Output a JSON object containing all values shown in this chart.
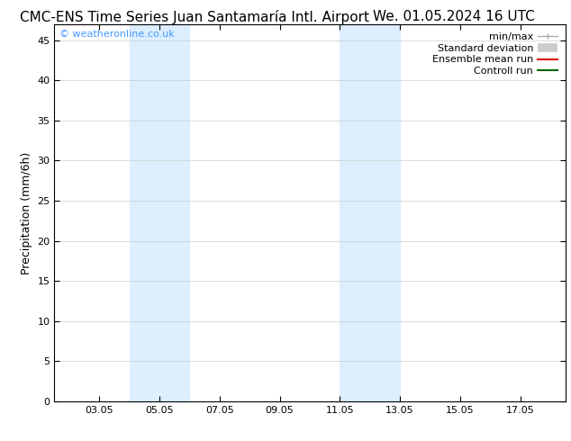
{
  "title_left": "CMC-ENS Time Series Juan Santamaría Intl. Airport",
  "title_right": "We. 01.05.2024 16 UTC",
  "ylabel": "Precipitation (mm/6h)",
  "copyright": "© weatheronline.co.uk",
  "copyright_color": "#4499ff",
  "background_color": "#ffffff",
  "plot_bg_color": "#ffffff",
  "ylim": [
    0,
    47
  ],
  "yticks": [
    0,
    5,
    10,
    15,
    20,
    25,
    30,
    35,
    40,
    45
  ],
  "xlim_start": 1.5,
  "xlim_end": 18.5,
  "xtick_positions": [
    3,
    5,
    7,
    9,
    11,
    13,
    15,
    17
  ],
  "xtick_labels": [
    "03.05",
    "05.05",
    "07.05",
    "09.05",
    "11.05",
    "13.05",
    "15.05",
    "17.05"
  ],
  "shade_bands": [
    {
      "x_start": 4.0,
      "x_end": 6.0
    },
    {
      "x_start": 11.0,
      "x_end": 13.0
    }
  ],
  "shade_color": "#ddeeff",
  "legend_items": [
    {
      "label": "min/max",
      "color": "#aaaaaa",
      "lw": 1.0
    },
    {
      "label": "Standard deviation",
      "color": "#cccccc",
      "lw": 7
    },
    {
      "label": "Ensemble mean run",
      "color": "#dd0000",
      "lw": 1.5
    },
    {
      "label": "Controll run",
      "color": "#006600",
      "lw": 1.5
    }
  ],
  "title_fontsize": 11,
  "axis_label_fontsize": 9,
  "tick_fontsize": 8,
  "legend_fontsize": 8,
  "copyright_fontsize": 8,
  "grid_color": "#cccccc",
  "tick_color": "#000000",
  "spine_color": "#000000"
}
